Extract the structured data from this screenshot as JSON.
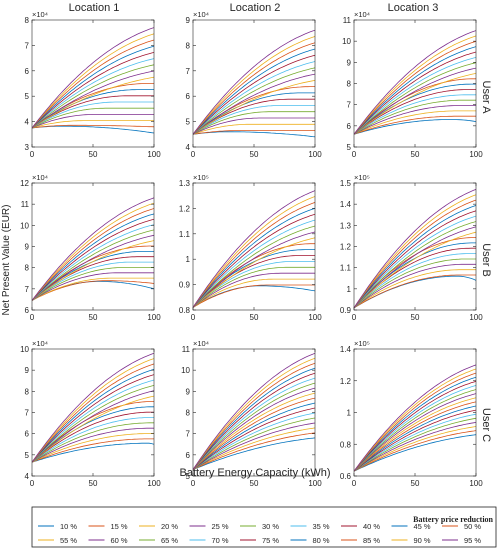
{
  "figure": {
    "ylabel": "Net Present Value (EUR)",
    "xlabel": "Battery Energy Capacity (kWh)",
    "col_titles": [
      "Location 1",
      "Location 2",
      "Location 3"
    ],
    "row_labels": [
      "User A",
      "User B",
      "User C"
    ],
    "legend_title": "Battery price reduction"
  },
  "legend_entries": [
    "10 %",
    "15 %",
    "20 %",
    "25 %",
    "30 %",
    "35 %",
    "40 %",
    "45 %",
    "50 %",
    "55 %",
    "60 %",
    "65 %",
    "70 %",
    "75 %",
    "80 %",
    "85 %",
    "90 %",
    "95 %"
  ],
  "colors": [
    "#0072BD",
    "#D95319",
    "#EDB120",
    "#7E2F8E",
    "#77AC30",
    "#4DBEEE",
    "#A2142F"
  ],
  "chart_data": [
    {
      "type": "line",
      "row": "User A",
      "col": "Location 1",
      "xlim": [
        0,
        100
      ],
      "x_ticks": [
        0,
        50,
        100
      ],
      "ylim": [
        3,
        8
      ],
      "y_ticks": [
        "3",
        "4",
        "5",
        "6",
        "7",
        "8"
      ],
      "exponent": "×10⁴",
      "y0": 3.75,
      "min_end": 3.55,
      "max_end": 7.7,
      "max_peak": 3.82,
      "peak_x": 25,
      "series_names": "legend_entries"
    },
    {
      "type": "line",
      "row": "User A",
      "col": "Location 2",
      "xlim": [
        0,
        100
      ],
      "x_ticks": [
        0,
        50,
        100
      ],
      "ylim": [
        4,
        9
      ],
      "y_ticks": [
        "4",
        "5",
        "6",
        "7",
        "8",
        "9"
      ],
      "exponent": "×10⁴",
      "y0": 4.5,
      "min_end": 4.4,
      "max_end": 8.6,
      "max_peak": 4.6,
      "peak_x": 30,
      "series_names": "legend_entries"
    },
    {
      "type": "line",
      "row": "User A",
      "col": "Location 3",
      "xlim": [
        0,
        100
      ],
      "x_ticks": [
        0,
        50,
        100
      ],
      "ylim": [
        5,
        11
      ],
      "y_ticks": [
        "5",
        "6",
        "7",
        "8",
        "9",
        "10",
        "11"
      ],
      "exponent": "×10⁴",
      "y0": 5.6,
      "min_end": 6.2,
      "max_end": 10.5,
      "max_peak": 6.3,
      "peak_x": 80,
      "series_names": "legend_entries"
    },
    {
      "type": "line",
      "row": "User B",
      "col": "Location 1",
      "xlim": [
        0,
        100
      ],
      "x_ticks": [
        0,
        50,
        100
      ],
      "ylim": [
        6,
        12
      ],
      "y_ticks": [
        "6",
        "7",
        "8",
        "9",
        "10",
        "11",
        "12"
      ],
      "exponent": "×10⁴",
      "y0": 6.45,
      "min_end": 7.0,
      "max_end": 11.3,
      "max_peak": 7.35,
      "peak_x": 55,
      "series_names": "legend_entries"
    },
    {
      "type": "line",
      "row": "User B",
      "col": "Location 2",
      "xlim": [
        0,
        100
      ],
      "x_ticks": [
        0,
        50,
        100
      ],
      "ylim": [
        0.8,
        1.3
      ],
      "y_ticks": [
        "0.8",
        "0.9",
        "1",
        "1.1",
        "1.2",
        "1.3"
      ],
      "exponent": "×10⁵",
      "y0": 0.81,
      "min_end": 0.875,
      "max_end": 1.27,
      "max_peak": 0.895,
      "peak_x": 55,
      "series_names": "legend_entries"
    },
    {
      "type": "line",
      "row": "User B",
      "col": "Location 3",
      "xlim": [
        0,
        100
      ],
      "x_ticks": [
        0,
        50,
        100
      ],
      "ylim": [
        0.9,
        1.5
      ],
      "y_ticks": [
        "0.9",
        "1",
        "1.1",
        "1.2",
        "1.3",
        "1.4",
        "1.5"
      ],
      "exponent": "×10⁵",
      "y0": 0.91,
      "min_end": 1.04,
      "max_end": 1.47,
      "max_peak": 1.06,
      "peak_x": 85,
      "series_names": "legend_entries"
    },
    {
      "type": "line",
      "row": "User C",
      "col": "Location 1",
      "xlim": [
        0,
        100
      ],
      "x_ticks": [
        0,
        50,
        100
      ],
      "ylim": [
        4,
        10
      ],
      "y_ticks": [
        "4",
        "5",
        "6",
        "7",
        "8",
        "9",
        "10"
      ],
      "exponent": "×10⁴",
      "y0": 4.65,
      "min_end": 5.5,
      "max_end": 9.8,
      "max_peak": 5.55,
      "peak_x": 95,
      "series_names": "legend_entries"
    },
    {
      "type": "line",
      "row": "User C",
      "col": "Location 2",
      "xlim": [
        0,
        100
      ],
      "x_ticks": [
        0,
        50,
        100
      ],
      "ylim": [
        5,
        11
      ],
      "y_ticks": [
        "5",
        "6",
        "7",
        "8",
        "9",
        "10",
        "11"
      ],
      "exponent": "×10⁴",
      "y0": 5.3,
      "min_end": 6.8,
      "max_end": 10.8,
      "max_peak": 6.8,
      "peak_x": 100,
      "series_names": "legend_entries"
    },
    {
      "type": "line",
      "row": "User C",
      "col": "Location 3",
      "xlim": [
        0,
        100
      ],
      "x_ticks": [
        0,
        50,
        100
      ],
      "ylim": [
        0.6,
        1.4
      ],
      "y_ticks": [
        "0.6",
        "0.8",
        "1",
        "1.2",
        "1.4"
      ],
      "exponent": "×10⁵",
      "y0": 0.63,
      "min_end": 0.86,
      "max_end": 1.3,
      "max_peak": 0.86,
      "peak_x": 100,
      "series_names": "legend_entries"
    }
  ]
}
